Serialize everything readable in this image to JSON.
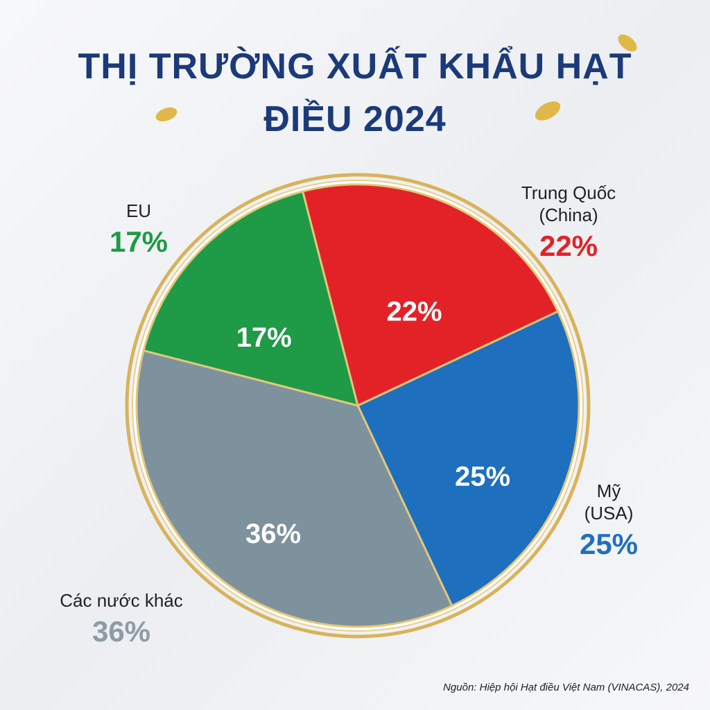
{
  "chart_data": {
    "type": "pie",
    "title": "THỊ TRƯỜNG XUẤT KHẨU HẠT ĐIỀU 2024",
    "categories": [
      "EU",
      "Trung Quốc (China)",
      "Mỹ (USA)",
      "Các nước khác"
    ],
    "values": [
      17,
      22,
      25,
      36
    ],
    "value_labels": [
      "17%",
      "22%",
      "25%",
      "36%"
    ],
    "colors": [
      "#1f9a47",
      "#e32228",
      "#1f6fbf",
      "#7e929e"
    ],
    "source": "Nguồn: Hiệp hội Hạt điều Việt Nam (VINACAS), 2024"
  }
}
